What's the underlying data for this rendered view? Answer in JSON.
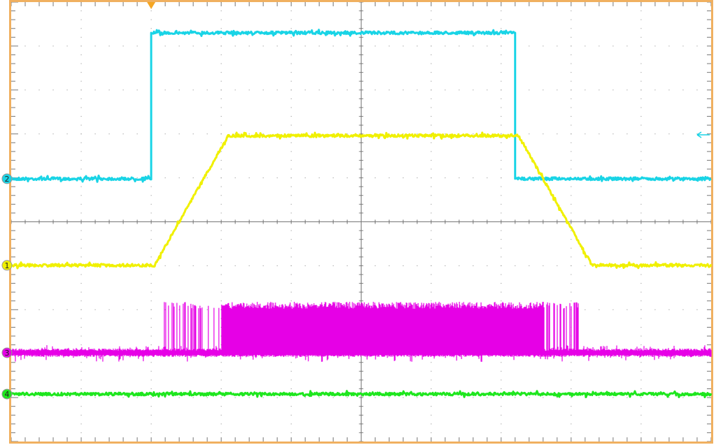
{
  "chart_data": {
    "type": "line",
    "title": "",
    "xlabel": "",
    "ylabel": "",
    "xlim": [
      0,
      10
    ],
    "ylim": [
      -5,
      5
    ],
    "grid": true,
    "grid_divisions": {
      "x": 10,
      "y": 10
    },
    "trigger": {
      "x": 2.0,
      "level": 1.98,
      "color": "#f5a623"
    },
    "frame_color": "#f0b060",
    "series": [
      {
        "name": "2",
        "color": "#19d4e6",
        "offset": 0.98,
        "x": [
          0,
          2.0,
          2.0,
          7.2,
          7.2,
          10
        ],
        "y": [
          0.98,
          0.98,
          4.3,
          4.3,
          0.98,
          0.98
        ]
      },
      {
        "name": "1",
        "color": "#f0f000",
        "offset": -0.99,
        "x": [
          0,
          2.05,
          3.1,
          7.25,
          8.3,
          10
        ],
        "y": [
          -0.99,
          -0.99,
          1.96,
          1.96,
          -0.99,
          -0.99
        ]
      },
      {
        "name": "3",
        "color": "#e600e6",
        "offset": -2.98,
        "burst": {
          "x_start": 2.12,
          "x_end": 8.15,
          "peak": -1.82
        }
      },
      {
        "name": "4",
        "color": "#1ee61e",
        "offset": -3.92,
        "x": [
          0,
          10
        ],
        "y": [
          -3.92,
          -3.92
        ]
      }
    ]
  }
}
